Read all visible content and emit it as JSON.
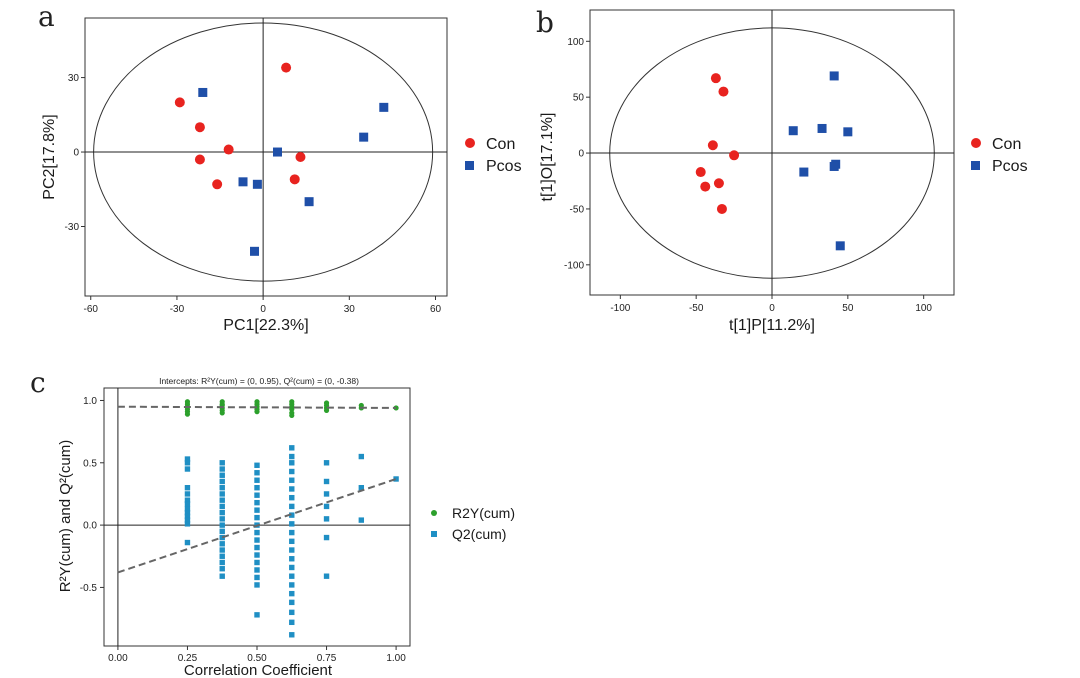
{
  "figure": {
    "panel_letters": [
      "a",
      "b",
      "c"
    ]
  },
  "chart_data": [
    {
      "panel": "a",
      "type": "scatter",
      "xlabel": "PC1[22.3%]",
      "ylabel": "PC2[17.8%]",
      "xlim": [
        -62,
        64
      ],
      "ylim": [
        -58,
        54
      ],
      "xticks": [
        -60,
        -30,
        0,
        30,
        60
      ],
      "yticks": [
        30,
        0,
        -30
      ],
      "ellipse": {
        "cx": 0,
        "cy": 0,
        "rx": 59,
        "ry": 52
      },
      "legend_position": "right",
      "series": [
        {
          "name": "Con",
          "marker": "circle",
          "color": "#e8231f",
          "points": [
            [
              -29,
              20
            ],
            [
              -22,
              10
            ],
            [
              -22,
              -3
            ],
            [
              -12,
              1
            ],
            [
              -16,
              -13
            ],
            [
              8,
              34
            ],
            [
              13,
              -2
            ],
            [
              11,
              -11
            ]
          ]
        },
        {
          "name": "Pcos",
          "marker": "square",
          "color": "#1f4fa8",
          "points": [
            [
              -21,
              24
            ],
            [
              -7,
              -12
            ],
            [
              -2,
              -13
            ],
            [
              5,
              0
            ],
            [
              16,
              -20
            ],
            [
              35,
              6
            ],
            [
              42,
              18
            ],
            [
              -3,
              -40
            ]
          ]
        }
      ]
    },
    {
      "panel": "b",
      "type": "scatter",
      "xlabel": "t[1]P[11.2%]",
      "ylabel": "t[1]O[17.1%]",
      "xlim": [
        -120,
        120
      ],
      "ylim": [
        -127,
        128
      ],
      "xticks": [
        -100,
        -50,
        0,
        50,
        100
      ],
      "yticks": [
        100,
        50,
        0,
        -50,
        -100
      ],
      "ellipse": {
        "cx": 0,
        "cy": 0,
        "rx": 107,
        "ry": 112
      },
      "legend_position": "right",
      "series": [
        {
          "name": "Con",
          "marker": "circle",
          "color": "#e8231f",
          "points": [
            [
              -37,
              67
            ],
            [
              -32,
              55
            ],
            [
              -39,
              7
            ],
            [
              -25,
              -2
            ],
            [
              -47,
              -17
            ],
            [
              -44,
              -30
            ],
            [
              -35,
              -27
            ],
            [
              -33,
              -50
            ]
          ]
        },
        {
          "name": "Pcos",
          "marker": "square",
          "color": "#1f4fa8",
          "points": [
            [
              41,
              69
            ],
            [
              14,
              20
            ],
            [
              33,
              22
            ],
            [
              50,
              19
            ],
            [
              42,
              -10
            ],
            [
              41,
              -12
            ],
            [
              21,
              -17
            ],
            [
              45,
              -83
            ]
          ]
        }
      ]
    },
    {
      "panel": "c",
      "type": "scatter",
      "subtitle": "Intercepts: R²Y(cum) = (0, 0.95), Q²(cum) = (0, -0.38)",
      "xlabel": "Correlation Coefficient",
      "ylabel": "R²Y(cum) and Q²(cum)",
      "xlim": [
        -0.05,
        1.05
      ],
      "ylim": [
        -0.97,
        1.1
      ],
      "xticks": [
        "0.00",
        "0.25",
        "0.50",
        "0.75",
        "1.00"
      ],
      "yticks": [
        "1.0",
        "0.5",
        "0.0",
        "-0.5"
      ],
      "legend_position": "right",
      "reference_lines": {
        "vertical_x": 0,
        "horizontal_y": 0
      },
      "regression_lines": [
        {
          "series": "R2Y(cum)",
          "from": [
            0,
            0.95
          ],
          "to": [
            1,
            0.94
          ]
        },
        {
          "series": "Q2(cum)",
          "from": [
            0,
            -0.38
          ],
          "to": [
            1,
            0.37
          ]
        }
      ],
      "series": [
        {
          "name": "R2Y(cum)",
          "marker": "circle",
          "color": "#2ca02c",
          "points": [
            [
              0.25,
              0.99
            ],
            [
              0.25,
              0.97
            ],
            [
              0.25,
              0.95
            ],
            [
              0.25,
              0.93
            ],
            [
              0.25,
              0.91
            ],
            [
              0.25,
              0.89
            ],
            [
              0.375,
              0.99
            ],
            [
              0.375,
              0.97
            ],
            [
              0.375,
              0.96
            ],
            [
              0.375,
              0.94
            ],
            [
              0.375,
              0.92
            ],
            [
              0.375,
              0.9
            ],
            [
              0.5,
              0.99
            ],
            [
              0.5,
              0.97
            ],
            [
              0.5,
              0.95
            ],
            [
              0.5,
              0.93
            ],
            [
              0.5,
              0.91
            ],
            [
              0.625,
              0.99
            ],
            [
              0.625,
              0.97
            ],
            [
              0.625,
              0.95
            ],
            [
              0.625,
              0.93
            ],
            [
              0.625,
              0.9
            ],
            [
              0.625,
              0.88
            ],
            [
              0.75,
              0.98
            ],
            [
              0.75,
              0.96
            ],
            [
              0.75,
              0.94
            ],
            [
              0.75,
              0.92
            ],
            [
              0.875,
              0.96
            ],
            [
              0.875,
              0.94
            ],
            [
              1.0,
              0.94
            ]
          ]
        },
        {
          "name": "Q2(cum)",
          "marker": "square",
          "color": "#1f8fc4",
          "points": [
            [
              0.25,
              0.53
            ],
            [
              0.25,
              0.5
            ],
            [
              0.25,
              0.45
            ],
            [
              0.25,
              0.3
            ],
            [
              0.25,
              0.25
            ],
            [
              0.25,
              0.2
            ],
            [
              0.25,
              0.17
            ],
            [
              0.25,
              0.13
            ],
            [
              0.25,
              0.1
            ],
            [
              0.25,
              0.07
            ],
            [
              0.25,
              0.04
            ],
            [
              0.25,
              0.01
            ],
            [
              0.25,
              -0.14
            ],
            [
              0.375,
              0.5
            ],
            [
              0.375,
              0.45
            ],
            [
              0.375,
              0.4
            ],
            [
              0.375,
              0.35
            ],
            [
              0.375,
              0.3
            ],
            [
              0.375,
              0.25
            ],
            [
              0.375,
              0.2
            ],
            [
              0.375,
              0.15
            ],
            [
              0.375,
              0.1
            ],
            [
              0.375,
              0.05
            ],
            [
              0.375,
              0.0
            ],
            [
              0.375,
              -0.05
            ],
            [
              0.375,
              -0.1
            ],
            [
              0.375,
              -0.15
            ],
            [
              0.375,
              -0.2
            ],
            [
              0.375,
              -0.25
            ],
            [
              0.375,
              -0.3
            ],
            [
              0.375,
              -0.35
            ],
            [
              0.375,
              -0.41
            ],
            [
              0.5,
              0.48
            ],
            [
              0.5,
              0.42
            ],
            [
              0.5,
              0.36
            ],
            [
              0.5,
              0.3
            ],
            [
              0.5,
              0.24
            ],
            [
              0.5,
              0.18
            ],
            [
              0.5,
              0.12
            ],
            [
              0.5,
              0.06
            ],
            [
              0.5,
              0.0
            ],
            [
              0.5,
              -0.06
            ],
            [
              0.5,
              -0.12
            ],
            [
              0.5,
              -0.18
            ],
            [
              0.5,
              -0.24
            ],
            [
              0.5,
              -0.3
            ],
            [
              0.5,
              -0.36
            ],
            [
              0.5,
              -0.42
            ],
            [
              0.5,
              -0.48
            ],
            [
              0.5,
              -0.72
            ],
            [
              0.625,
              0.62
            ],
            [
              0.625,
              0.55
            ],
            [
              0.625,
              0.5
            ],
            [
              0.625,
              0.43
            ],
            [
              0.625,
              0.36
            ],
            [
              0.625,
              0.29
            ],
            [
              0.625,
              0.22
            ],
            [
              0.625,
              0.15
            ],
            [
              0.625,
              0.08
            ],
            [
              0.625,
              0.01
            ],
            [
              0.625,
              -0.06
            ],
            [
              0.625,
              -0.13
            ],
            [
              0.625,
              -0.2
            ],
            [
              0.625,
              -0.27
            ],
            [
              0.625,
              -0.34
            ],
            [
              0.625,
              -0.41
            ],
            [
              0.625,
              -0.48
            ],
            [
              0.625,
              -0.55
            ],
            [
              0.625,
              -0.62
            ],
            [
              0.625,
              -0.7
            ],
            [
              0.625,
              -0.78
            ],
            [
              0.625,
              -0.88
            ],
            [
              0.75,
              0.5
            ],
            [
              0.75,
              0.35
            ],
            [
              0.75,
              0.25
            ],
            [
              0.75,
              0.15
            ],
            [
              0.75,
              0.05
            ],
            [
              0.75,
              -0.1
            ],
            [
              0.75,
              -0.41
            ],
            [
              0.875,
              0.55
            ],
            [
              0.875,
              0.3
            ],
            [
              0.875,
              0.04
            ],
            [
              1.0,
              0.37
            ]
          ]
        }
      ]
    }
  ]
}
